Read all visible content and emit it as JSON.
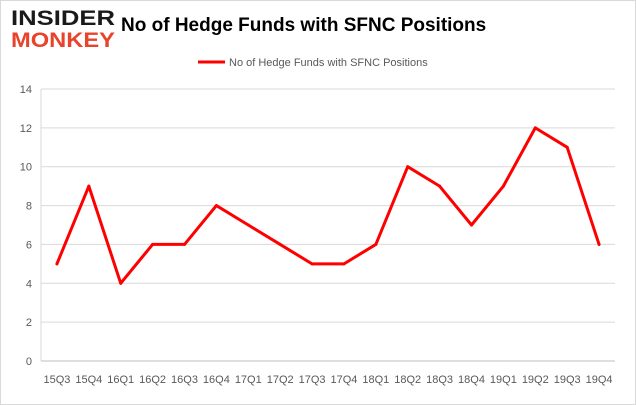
{
  "brand": {
    "line1": "INSIDER",
    "line2": "MONKEY"
  },
  "chart_data": {
    "type": "line",
    "title": "No of Hedge Funds with SFNC Positions",
    "xlabel": "",
    "ylabel": "",
    "categories": [
      "15Q3",
      "15Q4",
      "16Q1",
      "16Q2",
      "16Q3",
      "16Q4",
      "17Q1",
      "17Q2",
      "17Q3",
      "17Q4",
      "18Q1",
      "18Q2",
      "18Q3",
      "18Q4",
      "19Q1",
      "19Q2",
      "19Q3",
      "19Q4"
    ],
    "series": [
      {
        "name": "No of Hedge Funds with SFNC Positions",
        "color": "#ff0000",
        "values": [
          5,
          9,
          4,
          6,
          6,
          8,
          7,
          6,
          5,
          5,
          6,
          10,
          9,
          7,
          9,
          12,
          11,
          6
        ]
      }
    ],
    "ylim": [
      0,
      14
    ],
    "yticks": [
      0,
      2,
      4,
      6,
      8,
      10,
      12,
      14
    ],
    "grid": true,
    "legend_position": "top-center"
  }
}
